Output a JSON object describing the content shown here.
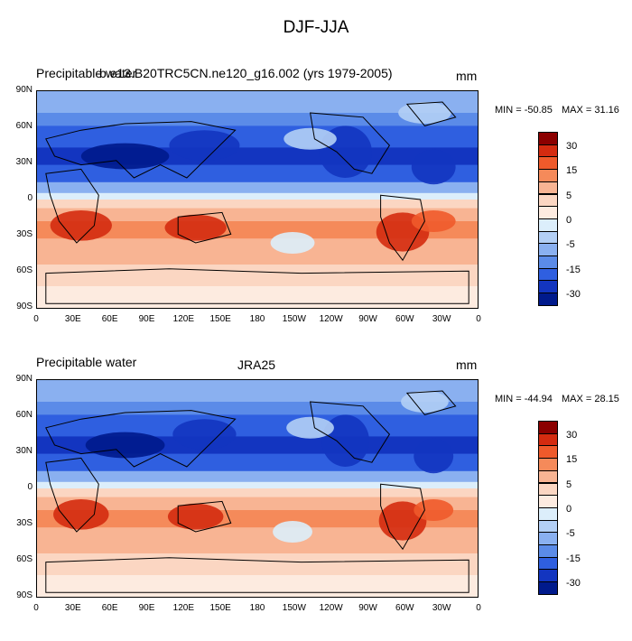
{
  "figure": {
    "title": "DJF-JJA"
  },
  "colorbar": {
    "labels": [
      "30",
      "15",
      "5",
      "0",
      "-5",
      "-15",
      "-30"
    ],
    "colors": [
      "#8b0000",
      "#d42b10",
      "#ef5a2b",
      "#f58a5a",
      "#f8b493",
      "#fbd6c2",
      "#fdebe0",
      "#dceefb",
      "#b3cff5",
      "#8ab0f0",
      "#5b8be8",
      "#2f5fe0",
      "#1335c0",
      "#001a8c"
    ]
  },
  "axes": {
    "lat_labels": [
      "90N",
      "60N",
      "30N",
      "0",
      "30S",
      "60S",
      "90S"
    ],
    "lon_labels": [
      "0",
      "30E",
      "60E",
      "90E",
      "120E",
      "150E",
      "180",
      "150W",
      "120W",
      "90W",
      "60W",
      "30W",
      "0"
    ]
  },
  "panels": [
    {
      "left_label": "Precipitable water",
      "center_label": "b.e13.B20TRC5CN.ne120_g16.002 (yrs 1979-2005)",
      "units": "mm",
      "min_label": "MIN = -50.85",
      "max_label": "MAX =  31.16"
    },
    {
      "left_label": "Precipitable water",
      "center_label": "JRA25",
      "units": "mm",
      "min_label": "MIN = -44.94",
      "max_label": "MAX =  28.15"
    }
  ]
}
